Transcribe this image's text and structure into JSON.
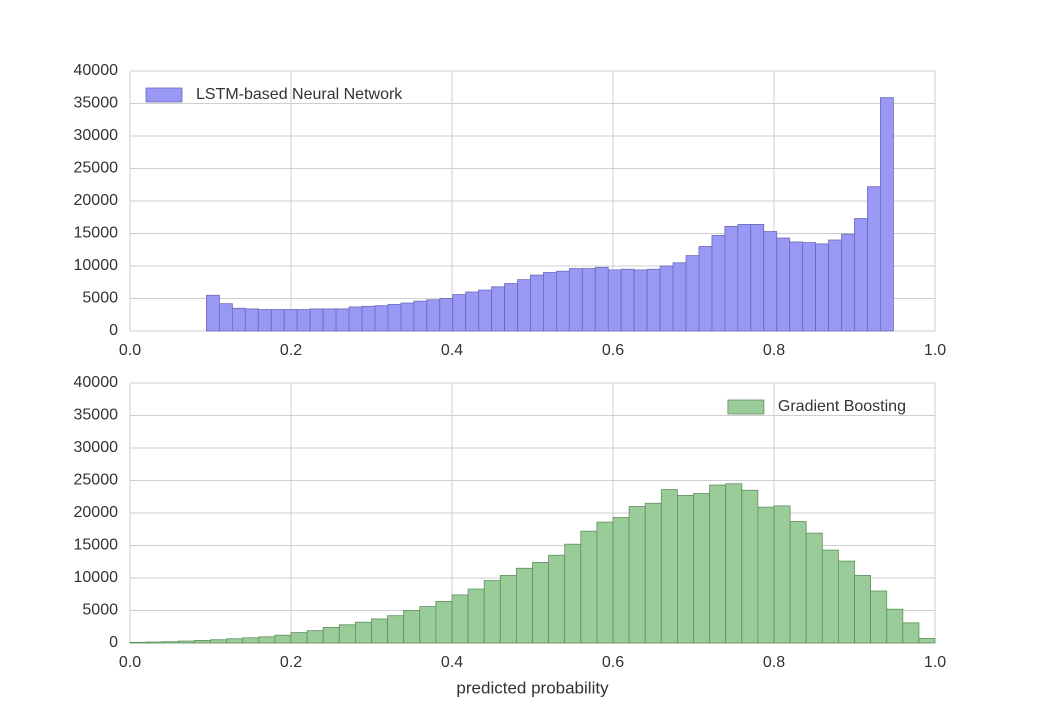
{
  "chart_data": [
    {
      "type": "histogram",
      "bins": [
        0.095,
        0.1111,
        0.1272,
        0.1433,
        0.1594,
        0.1755,
        0.1916,
        0.2077,
        0.2238,
        0.2399,
        0.256,
        0.2721,
        0.2882,
        0.3043,
        0.3204,
        0.3365,
        0.3526,
        0.3687,
        0.3848,
        0.4009,
        0.417,
        0.4331,
        0.4492,
        0.4653,
        0.4814,
        0.4975,
        0.5136,
        0.5297,
        0.5458,
        0.5619,
        0.578,
        0.5941,
        0.6102,
        0.6263,
        0.6424,
        0.6585,
        0.6746,
        0.6907,
        0.7068,
        0.7229,
        0.739,
        0.7551,
        0.7712,
        0.7873,
        0.8034,
        0.8195,
        0.8356,
        0.8517,
        0.8678,
        0.8839,
        0.9,
        0.9161,
        0.9322,
        0.9483
      ],
      "series": [
        {
          "name": "LSTM-based Neural Network",
          "color": "#9999f5",
          "edgecolor": "#6a6ab8",
          "values": [
            5500,
            4200,
            3500,
            3400,
            3300,
            3300,
            3300,
            3300,
            3400,
            3400,
            3400,
            3700,
            3800,
            3900,
            4100,
            4300,
            4600,
            4800,
            5000,
            5600,
            6000,
            6300,
            6800,
            7300,
            7900,
            8600,
            9000,
            9200,
            9600,
            9600,
            9800,
            9400,
            9500,
            9400,
            9500,
            10000,
            10500,
            11600,
            13000,
            14700,
            16100,
            16400,
            16400,
            15300,
            14300,
            13700,
            13600,
            13400,
            14000,
            14900,
            17300,
            22200,
            35900
          ]
        }
      ],
      "xlim": [
        0,
        1
      ],
      "xticks": [
        {
          "value": 0,
          "label": "0.0"
        },
        0.2,
        0.4,
        0.6,
        0.8,
        {
          "value": 1,
          "label": "1.0"
        }
      ],
      "ylim": [
        0,
        40000
      ],
      "yticks": [
        0,
        5000,
        10000,
        15000,
        20000,
        25000,
        30000,
        35000,
        40000
      ],
      "grid": true,
      "legend": "upper left"
    },
    {
      "type": "histogram",
      "bins": [
        0,
        0.02,
        0.04,
        0.06,
        0.08,
        0.1,
        0.12,
        0.14,
        0.16,
        0.18,
        0.2,
        0.22,
        0.24,
        0.26,
        0.28,
        0.3,
        0.32,
        0.34,
        0.36,
        0.38,
        0.4,
        0.42,
        0.44,
        0.46,
        0.48,
        0.5,
        0.52,
        0.54,
        0.56,
        0.58,
        0.6,
        0.62,
        0.64,
        0.66,
        0.68,
        0.7,
        0.72,
        0.74,
        0.76,
        0.78,
        0.8,
        0.82,
        0.84,
        0.86,
        0.88,
        0.9,
        0.92,
        0.94,
        0.96,
        0.98,
        1
      ],
      "series": [
        {
          "name": "Gradient Boosting",
          "color": "#99cc99",
          "edgecolor": "#5f8f5f",
          "values": [
            100,
            150,
            200,
            300,
            400,
            500,
            650,
            800,
            950,
            1200,
            1600,
            1900,
            2400,
            2800,
            3200,
            3700,
            4200,
            5000,
            5600,
            6400,
            7400,
            8300,
            9600,
            10400,
            11500,
            12400,
            13500,
            15200,
            17200,
            18600,
            19300,
            21000,
            21500,
            23600,
            22700,
            23000,
            24300,
            24500,
            23500,
            20900,
            21100,
            18700,
            16900,
            14300,
            12600,
            10400,
            8000,
            5200,
            3100,
            700
          ]
        }
      ],
      "xlim": [
        0,
        1
      ],
      "xticks": [
        {
          "value": 0,
          "label": "0.0"
        },
        0.2,
        0.4,
        0.6,
        0.8,
        {
          "value": 1,
          "label": "1.0"
        }
      ],
      "ylim": [
        0,
        40000
      ],
      "yticks": [
        0,
        5000,
        10000,
        15000,
        20000,
        25000,
        30000,
        35000,
        40000
      ],
      "xlabel": "predicted probability",
      "grid": true,
      "legend": "upper right"
    }
  ]
}
